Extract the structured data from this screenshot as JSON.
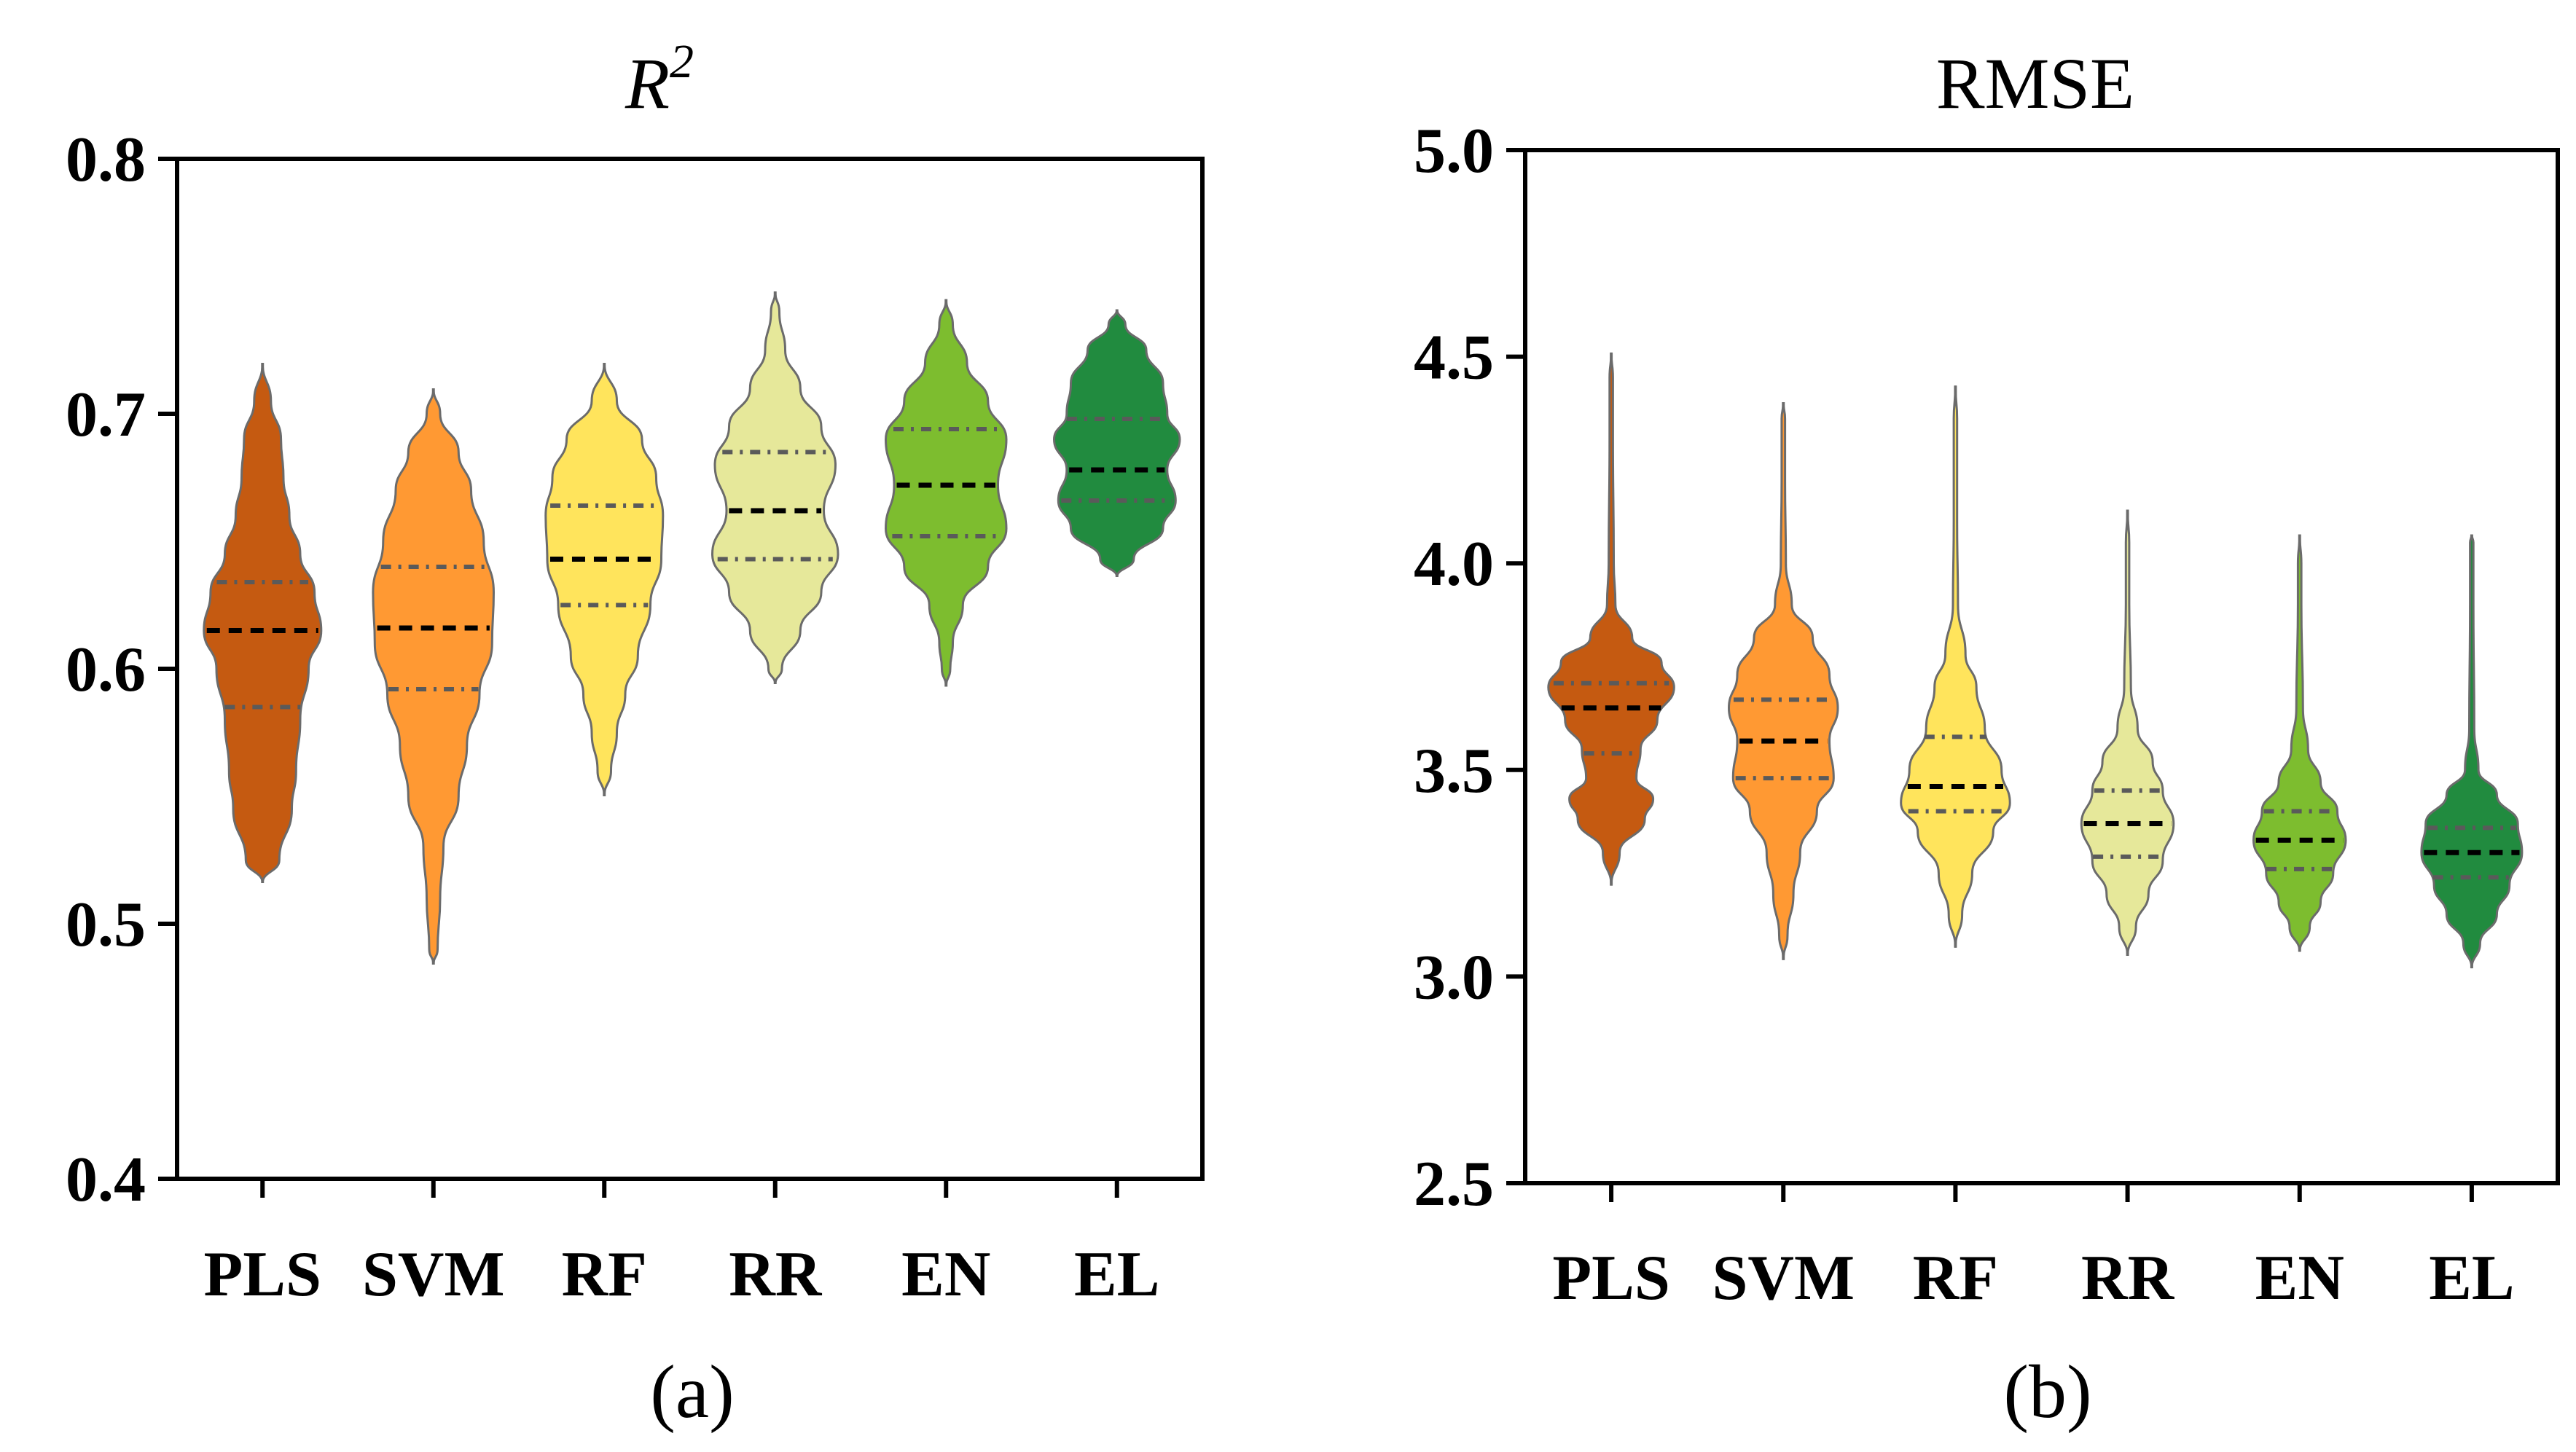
{
  "chart_data": [
    {
      "type": "violin",
      "title": "R2",
      "title_parts": {
        "base": "R",
        "sup": "2"
      },
      "subfigure_label": "(a)",
      "ylim": [
        0.4,
        0.8
      ],
      "yticks": [
        "0.4",
        "0.5",
        "0.6",
        "0.7",
        "0.8"
      ],
      "categories": [
        "PLS",
        "SVM",
        "RF",
        "RR",
        "EN",
        "EL"
      ],
      "colors": [
        "#C55A11",
        "#FF9933",
        "#FFE45C",
        "#E6E89A",
        "#7DBD2F",
        "#218B3F"
      ],
      "series": [
        {
          "name": "PLS",
          "min": 0.516,
          "max": 0.72,
          "q1": 0.585,
          "median": 0.615,
          "q3": 0.634,
          "density": [
            [
              0.525,
              0.2
            ],
            [
              0.545,
              0.35
            ],
            [
              0.56,
              0.4
            ],
            [
              0.58,
              0.45
            ],
            [
              0.6,
              0.55
            ],
            [
              0.615,
              0.7
            ],
            [
              0.63,
              0.62
            ],
            [
              0.645,
              0.45
            ],
            [
              0.66,
              0.32
            ],
            [
              0.675,
              0.25
            ],
            [
              0.69,
              0.22
            ],
            [
              0.705,
              0.1
            ]
          ]
        },
        {
          "name": "SVM",
          "min": 0.484,
          "max": 0.71,
          "q1": 0.592,
          "median": 0.616,
          "q3": 0.64,
          "density": [
            [
              0.49,
              0.05
            ],
            [
              0.51,
              0.08
            ],
            [
              0.53,
              0.12
            ],
            [
              0.55,
              0.3
            ],
            [
              0.57,
              0.4
            ],
            [
              0.59,
              0.55
            ],
            [
              0.61,
              0.7
            ],
            [
              0.63,
              0.72
            ],
            [
              0.65,
              0.6
            ],
            [
              0.67,
              0.45
            ],
            [
              0.685,
              0.3
            ],
            [
              0.7,
              0.08
            ]
          ]
        },
        {
          "name": "RF",
          "min": 0.55,
          "max": 0.72,
          "q1": 0.625,
          "median": 0.643,
          "q3": 0.664,
          "density": [
            [
              0.56,
              0.08
            ],
            [
              0.575,
              0.15
            ],
            [
              0.59,
              0.25
            ],
            [
              0.605,
              0.4
            ],
            [
              0.625,
              0.55
            ],
            [
              0.643,
              0.68
            ],
            [
              0.66,
              0.7
            ],
            [
              0.675,
              0.62
            ],
            [
              0.69,
              0.45
            ],
            [
              0.705,
              0.15
            ]
          ]
        },
        {
          "name": "RR",
          "min": 0.594,
          "max": 0.748,
          "q1": 0.643,
          "median": 0.662,
          "q3": 0.685,
          "density": [
            [
              0.6,
              0.08
            ],
            [
              0.615,
              0.3
            ],
            [
              0.63,
              0.55
            ],
            [
              0.645,
              0.75
            ],
            [
              0.662,
              0.58
            ],
            [
              0.68,
              0.72
            ],
            [
              0.695,
              0.55
            ],
            [
              0.71,
              0.3
            ],
            [
              0.725,
              0.12
            ],
            [
              0.74,
              0.05
            ]
          ]
        },
        {
          "name": "EN",
          "min": 0.593,
          "max": 0.745,
          "q1": 0.652,
          "median": 0.672,
          "q3": 0.694,
          "density": [
            [
              0.6,
              0.05
            ],
            [
              0.61,
              0.08
            ],
            [
              0.625,
              0.2
            ],
            [
              0.64,
              0.5
            ],
            [
              0.655,
              0.72
            ],
            [
              0.672,
              0.62
            ],
            [
              0.69,
              0.72
            ],
            [
              0.705,
              0.5
            ],
            [
              0.72,
              0.25
            ],
            [
              0.735,
              0.08
            ]
          ]
        },
        {
          "name": "EL",
          "min": 0.636,
          "max": 0.741,
          "q1": 0.666,
          "median": 0.678,
          "q3": 0.698,
          "density": [
            [
              0.643,
              0.2
            ],
            [
              0.655,
              0.55
            ],
            [
              0.666,
              0.7
            ],
            [
              0.678,
              0.6
            ],
            [
              0.69,
              0.75
            ],
            [
              0.7,
              0.6
            ],
            [
              0.712,
              0.55
            ],
            [
              0.725,
              0.35
            ],
            [
              0.735,
              0.1
            ]
          ]
        }
      ]
    },
    {
      "type": "violin",
      "title": "RMSE",
      "subfigure_label": "(b)",
      "ylim": [
        2.5,
        5.0
      ],
      "yticks": [
        "2.5",
        "3.0",
        "3.5",
        "4.0",
        "4.5",
        "5.0"
      ],
      "categories": [
        "PLS",
        "SVM",
        "RF",
        "RR",
        "EN",
        "EL"
      ],
      "colors": [
        "#C55A11",
        "#FF9933",
        "#FFE45C",
        "#E6E89A",
        "#7DBD2F",
        "#218B3F"
      ],
      "series": [
        {
          "name": "PLS",
          "min": 3.22,
          "max": 4.51,
          "q1": 3.54,
          "median": 3.65,
          "q3": 3.71,
          "density": [
            [
              3.3,
              0.1
            ],
            [
              3.38,
              0.4
            ],
            [
              3.43,
              0.5
            ],
            [
              3.48,
              0.3
            ],
            [
              3.55,
              0.35
            ],
            [
              3.62,
              0.55
            ],
            [
              3.7,
              0.75
            ],
            [
              3.76,
              0.6
            ],
            [
              3.82,
              0.25
            ],
            [
              3.9,
              0.05
            ],
            [
              4.0,
              0.03
            ],
            [
              4.3,
              0.02
            ],
            [
              4.45,
              0.02
            ]
          ]
        },
        {
          "name": "SVM",
          "min": 3.04,
          "max": 4.39,
          "q1": 3.48,
          "median": 3.57,
          "q3": 3.67,
          "density": [
            [
              3.1,
              0.05
            ],
            [
              3.2,
              0.12
            ],
            [
              3.3,
              0.2
            ],
            [
              3.4,
              0.4
            ],
            [
              3.48,
              0.6
            ],
            [
              3.57,
              0.55
            ],
            [
              3.65,
              0.65
            ],
            [
              3.73,
              0.55
            ],
            [
              3.82,
              0.35
            ],
            [
              3.9,
              0.1
            ],
            [
              4.0,
              0.03
            ],
            [
              4.2,
              0.02
            ],
            [
              4.35,
              0.02
            ]
          ]
        },
        {
          "name": "RF",
          "min": 3.07,
          "max": 4.43,
          "q1": 3.4,
          "median": 3.46,
          "q3": 3.58,
          "density": [
            [
              3.15,
              0.08
            ],
            [
              3.25,
              0.2
            ],
            [
              3.35,
              0.45
            ],
            [
              3.42,
              0.65
            ],
            [
              3.5,
              0.55
            ],
            [
              3.6,
              0.35
            ],
            [
              3.7,
              0.25
            ],
            [
              3.78,
              0.12
            ],
            [
              3.9,
              0.03
            ],
            [
              4.1,
              0.02
            ],
            [
              4.35,
              0.02
            ]
          ]
        },
        {
          "name": "RR",
          "min": 3.05,
          "max": 4.13,
          "q1": 3.29,
          "median": 3.37,
          "q3": 3.45,
          "density": [
            [
              3.12,
              0.1
            ],
            [
              3.2,
              0.25
            ],
            [
              3.28,
              0.42
            ],
            [
              3.37,
              0.55
            ],
            [
              3.45,
              0.42
            ],
            [
              3.52,
              0.3
            ],
            [
              3.6,
              0.12
            ],
            [
              3.7,
              0.04
            ],
            [
              3.9,
              0.02
            ],
            [
              4.05,
              0.02
            ]
          ]
        },
        {
          "name": "EN",
          "min": 3.06,
          "max": 4.07,
          "q1": 3.26,
          "median": 3.33,
          "q3": 3.4,
          "density": [
            [
              3.12,
              0.12
            ],
            [
              3.18,
              0.25
            ],
            [
              3.25,
              0.4
            ],
            [
              3.33,
              0.55
            ],
            [
              3.4,
              0.45
            ],
            [
              3.47,
              0.25
            ],
            [
              3.55,
              0.1
            ],
            [
              3.65,
              0.04
            ],
            [
              3.9,
              0.02
            ],
            [
              4.0,
              0.02
            ]
          ]
        },
        {
          "name": "EL",
          "min": 3.02,
          "max": 4.07,
          "q1": 3.24,
          "median": 3.3,
          "q3": 3.36,
          "density": [
            [
              3.08,
              0.1
            ],
            [
              3.15,
              0.3
            ],
            [
              3.22,
              0.45
            ],
            [
              3.3,
              0.6
            ],
            [
              3.37,
              0.55
            ],
            [
              3.44,
              0.3
            ],
            [
              3.5,
              0.08
            ],
            [
              3.6,
              0.03
            ],
            [
              3.9,
              0.02
            ],
            [
              4.05,
              0.02
            ]
          ]
        }
      ]
    }
  ]
}
